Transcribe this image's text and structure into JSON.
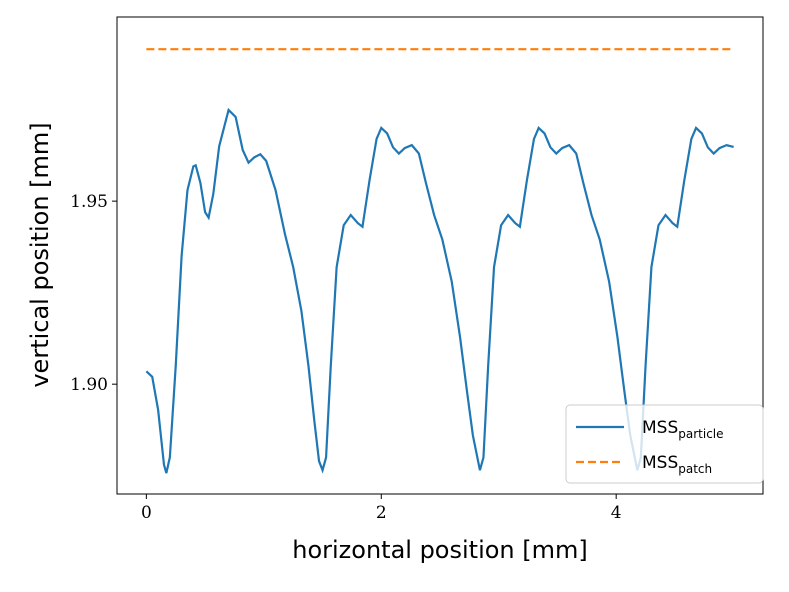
{
  "chart_data": {
    "type": "line",
    "xlabel": "horizontal position [mm]",
    "ylabel": "vertical position [mm]",
    "xlim": [
      -0.25,
      5.25
    ],
    "ylim": [
      1.87,
      2.0003
    ],
    "xticks": [
      0,
      2,
      4
    ],
    "yticks": [
      {
        "value": 1.9,
        "label": "1.90"
      },
      1.95
    ],
    "legend": "lower right",
    "series": [
      {
        "name": "MSS_particle",
        "color": "#1f77b4",
        "dash": "solid",
        "x": [
          0,
          0.05,
          0.1,
          0.15,
          0.17,
          0.2,
          0.25,
          0.3,
          0.35,
          0.4,
          0.42,
          0.46,
          0.5,
          0.53,
          0.57,
          0.62,
          0.7,
          0.76,
          0.82,
          0.87,
          0.92,
          0.97,
          1.02,
          1.1,
          1.18,
          1.25,
          1.32,
          1.38,
          1.43,
          1.47,
          1.5,
          1.53,
          1.57,
          1.62,
          1.68,
          1.74,
          1.8,
          1.84,
          1.9,
          1.96,
          2.0,
          2.05,
          2.1,
          2.15,
          2.2,
          2.26,
          2.32,
          2.38,
          2.45,
          2.52,
          2.6,
          2.67,
          2.73,
          2.78,
          2.84,
          2.87,
          2.91,
          2.96,
          3.02,
          3.08,
          3.14,
          3.18,
          3.24,
          3.3,
          3.34,
          3.39,
          3.44,
          3.49,
          3.54,
          3.6,
          3.66,
          3.72,
          3.79,
          3.86,
          3.94,
          4.01,
          4.07,
          4.12,
          4.18,
          4.21,
          4.25,
          4.3,
          4.36,
          4.42,
          4.48,
          4.52,
          4.58,
          4.64,
          4.68,
          4.73,
          4.78,
          4.83,
          4.88,
          4.94,
          5.0
        ],
        "values": [
          1.9035,
          1.902,
          1.893,
          1.878,
          1.8757,
          1.88,
          1.905,
          1.935,
          1.953,
          1.9595,
          1.9598,
          1.955,
          1.947,
          1.9455,
          1.952,
          1.965,
          1.9749,
          1.973,
          1.964,
          1.9605,
          1.962,
          1.9628,
          1.961,
          1.953,
          1.941,
          1.932,
          1.92,
          1.905,
          1.89,
          1.879,
          1.8765,
          1.88,
          1.905,
          1.932,
          1.9434,
          1.9462,
          1.944,
          1.943,
          1.9557,
          1.967,
          1.97,
          1.9685,
          1.9647,
          1.963,
          1.9645,
          1.9653,
          1.963,
          1.955,
          1.9462,
          1.9395,
          1.928,
          1.913,
          1.898,
          1.886,
          1.8765,
          1.88,
          1.905,
          1.932,
          1.9434,
          1.9462,
          1.944,
          1.943,
          1.9557,
          1.967,
          1.97,
          1.9685,
          1.9647,
          1.963,
          1.9645,
          1.9653,
          1.963,
          1.955,
          1.9462,
          1.9395,
          1.928,
          1.913,
          1.898,
          1.886,
          1.8765,
          1.88,
          1.905,
          1.932,
          1.9434,
          1.9462,
          1.944,
          1.943,
          1.9557,
          1.967,
          1.97,
          1.9685,
          1.9647,
          1.963,
          1.9645,
          1.9653,
          1.9648
        ]
      },
      {
        "name": "MSS_patch",
        "color": "#ff7f0e",
        "dash": "dashed",
        "x": [
          0,
          5
        ],
        "values": [
          1.9915,
          1.9915
        ]
      }
    ]
  }
}
